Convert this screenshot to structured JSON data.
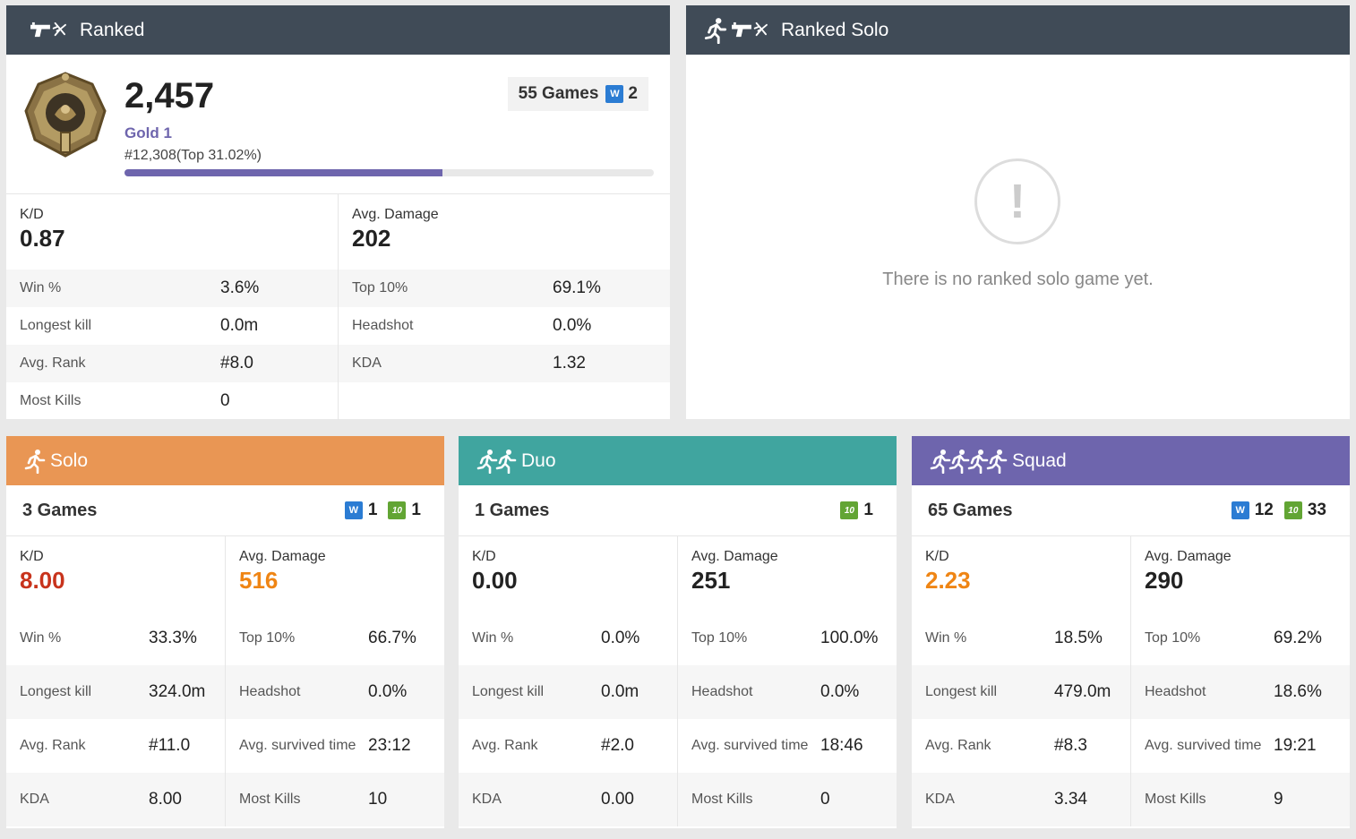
{
  "ranked": {
    "title": "Ranked",
    "rp": "2,457",
    "tier": "Gold 1",
    "position": "#12,308(Top 31.02%)",
    "progress": 0.6,
    "games": "55 Games",
    "wins": "2",
    "kd_label": "K/D",
    "kd": "0.87",
    "dmg_label": "Avg. Damage",
    "dmg": "202",
    "left_rows": [
      {
        "k": "Win %",
        "v": "3.6%"
      },
      {
        "k": "Longest kill",
        "v": "0.0m"
      },
      {
        "k": "Avg. Rank",
        "v": "#8.0"
      },
      {
        "k": "Most Kills",
        "v": "0"
      }
    ],
    "right_rows": [
      {
        "k": "Top 10%",
        "v": "69.1%"
      },
      {
        "k": "Headshot",
        "v": "0.0%"
      },
      {
        "k": "KDA",
        "v": "1.32"
      },
      {
        "k": "",
        "v": ""
      }
    ]
  },
  "ranked_solo": {
    "title": "Ranked Solo",
    "empty_icon": "!",
    "message": "There is no ranked solo game yet."
  },
  "icons": {
    "run": "running-person-icon",
    "gun": "gun-icon",
    "medal": "gold-medal-icon",
    "alert": "exclamation-icon"
  },
  "colors": {
    "dark": "#404b57",
    "solo": "#e99654",
    "duo": "#40a59f",
    "squad": "#6e65ad",
    "red": "#c8331c",
    "orange": "#ef8514"
  },
  "modes": [
    {
      "title": "Solo",
      "games": "3 Games",
      "wins": "1",
      "top10": "1",
      "kd_label": "K/D",
      "kd": "8.00",
      "dmg_label": "Avg. Damage",
      "dmg": "516",
      "left_rows": [
        {
          "k": "Win %",
          "v": "33.3%"
        },
        {
          "k": "Longest kill",
          "v": "324.0m"
        },
        {
          "k": "Avg. Rank",
          "v": "#11.0"
        },
        {
          "k": "KDA",
          "v": "8.00"
        }
      ],
      "right_rows": [
        {
          "k": "Top 10%",
          "v": "66.7%"
        },
        {
          "k": "Headshot",
          "v": "0.0%"
        },
        {
          "k": "Avg. survived time",
          "v": "23:12"
        },
        {
          "k": "Most Kills",
          "v": "10"
        }
      ]
    },
    {
      "title": "Duo",
      "games": "1 Games",
      "wins": "",
      "top10": "1",
      "kd_label": "K/D",
      "kd": "0.00",
      "dmg_label": "Avg. Damage",
      "dmg": "251",
      "left_rows": [
        {
          "k": "Win %",
          "v": "0.0%"
        },
        {
          "k": "Longest kill",
          "v": "0.0m"
        },
        {
          "k": "Avg. Rank",
          "v": "#2.0"
        },
        {
          "k": "KDA",
          "v": "0.00"
        }
      ],
      "right_rows": [
        {
          "k": "Top 10%",
          "v": "100.0%"
        },
        {
          "k": "Headshot",
          "v": "0.0%"
        },
        {
          "k": "Avg. survived time",
          "v": "18:46"
        },
        {
          "k": "Most Kills",
          "v": "0"
        }
      ]
    },
    {
      "title": "Squad",
      "games": "65 Games",
      "wins": "12",
      "top10": "33",
      "kd_label": "K/D",
      "kd": "2.23",
      "dmg_label": "Avg. Damage",
      "dmg": "290",
      "left_rows": [
        {
          "k": "Win %",
          "v": "18.5%"
        },
        {
          "k": "Longest kill",
          "v": "479.0m"
        },
        {
          "k": "Avg. Rank",
          "v": "#8.3"
        },
        {
          "k": "KDA",
          "v": "3.34"
        }
      ],
      "right_rows": [
        {
          "k": "Top 10%",
          "v": "69.2%"
        },
        {
          "k": "Headshot",
          "v": "18.6%"
        },
        {
          "k": "Avg. survived time",
          "v": "19:21"
        },
        {
          "k": "Most Kills",
          "v": "9"
        }
      ]
    }
  ],
  "badges": {
    "w": "W",
    "t": "10"
  }
}
